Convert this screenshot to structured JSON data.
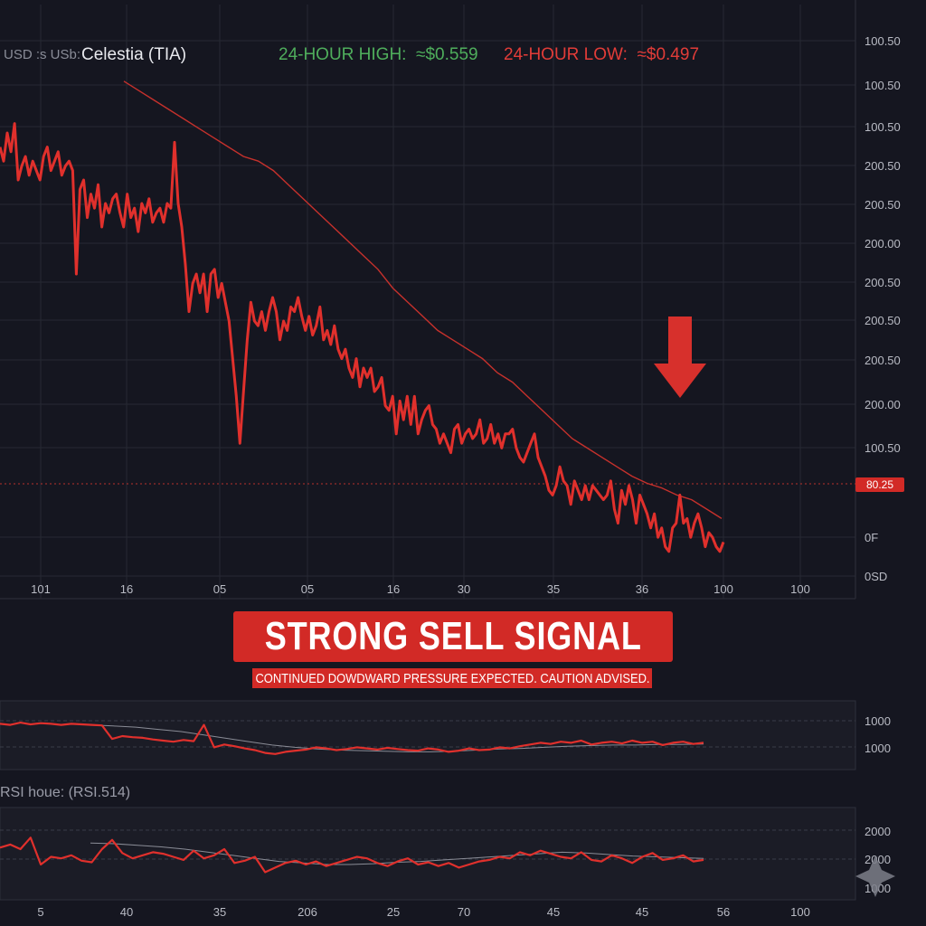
{
  "header": {
    "pair_label": "USD :s USb:",
    "asset_label": "Celestia (TIA)",
    "high_label": "24-HOUR HIGH:",
    "high_value": "≈$0.559",
    "low_label": "24-HOUR LOW:",
    "low_value": "≈$0.497"
  },
  "colors": {
    "price": "#e0302c",
    "ma": "#c6312c",
    "high": "#4fae5c",
    "low": "#e23c38",
    "banner": "#d22a26",
    "grid": "#262833",
    "background": "#151620"
  },
  "signal": {
    "title": "STRONG SELL SIGNAL",
    "subtitle": "CONTINUED DOWDWARD PRESSURE EXPECTED. CAUTION ADVISED."
  },
  "arrow_icon": "down-arrow-icon",
  "corner_icon": "diamond-star-icon",
  "chart_data": [
    {
      "type": "line",
      "title": "",
      "y_tick_labels": [
        "100.50",
        "100.50",
        "100.50",
        "200.50",
        "200.50",
        "200.00",
        "200.50",
        "200.50",
        "200.50",
        "200.00",
        "100.50",
        "0F",
        "0SD"
      ],
      "x_tick_labels": [
        "101",
        "16",
        "05",
        "05",
        "16",
        "30",
        "35",
        "36",
        "100",
        "100"
      ],
      "current_price_label": "80.25",
      "ylim": [
        0,
        100
      ],
      "grid": true,
      "series": [
        {
          "values": [
            87,
            84,
            90,
            86,
            92,
            80,
            83,
            85,
            81,
            84,
            82,
            80,
            85,
            87,
            82,
            84,
            86,
            81,
            83,
            84,
            82,
            60,
            78,
            80,
            72,
            77,
            74,
            79,
            70,
            75,
            73,
            76,
            77,
            73,
            70,
            77,
            72,
            74,
            69,
            75,
            73,
            76,
            71,
            73,
            74,
            71,
            75,
            74,
            88,
            75,
            70,
            62,
            52,
            58,
            60,
            56,
            60,
            52,
            60,
            61,
            55,
            58,
            54,
            50,
            42,
            34,
            24,
            35,
            46,
            54,
            50,
            49,
            52,
            48,
            52,
            55,
            52,
            46,
            50,
            48,
            53,
            52,
            55,
            51,
            48,
            51,
            47,
            49,
            53,
            46,
            48,
            45,
            49,
            44,
            42,
            44,
            40,
            38,
            42,
            36,
            40,
            38,
            40,
            35,
            36,
            38,
            32,
            31,
            34,
            26,
            33,
            29,
            34,
            28,
            34,
            26,
            29,
            31,
            32,
            28,
            27,
            24,
            26,
            24,
            22,
            27,
            28,
            24,
            26,
            27,
            25,
            26,
            29,
            24,
            25,
            28,
            24,
            26,
            23,
            26,
            26,
            27,
            23,
            21,
            20,
            22,
            24,
            26,
            21,
            19,
            17,
            14,
            13,
            15,
            19,
            16,
            15,
            11,
            16,
            14,
            12,
            15,
            12,
            15,
            14,
            13,
            12,
            13,
            16,
            10,
            7,
            14,
            11,
            15,
            12,
            7,
            13,
            11,
            9,
            6,
            9,
            4,
            6,
            2,
            1,
            6,
            7,
            13,
            7,
            8,
            4,
            7,
            9,
            6,
            2,
            5,
            4,
            2,
            1,
            3
          ]
        },
        {
          "name": "",
          "values": [
            101,
            99,
            97,
            95,
            93,
            91,
            89,
            87,
            85,
            84,
            82,
            79,
            76,
            73,
            70,
            67,
            64,
            61,
            57,
            54,
            51,
            48,
            46,
            44,
            42,
            39,
            37,
            34,
            31,
            28,
            25,
            23,
            21,
            19,
            17,
            15.5,
            14.5,
            13,
            12,
            10,
            8
          ]
        }
      ]
    },
    {
      "type": "line",
      "title": "",
      "y_tick_labels": [
        "1000",
        "1000"
      ],
      "grid": true,
      "series": [
        {
          "values": [
            72,
            70,
            74,
            71,
            73,
            72,
            70,
            72,
            71,
            70,
            69,
            45,
            50,
            48,
            47,
            44,
            42,
            40,
            43,
            41,
            70,
            30,
            35,
            32,
            28,
            25,
            20,
            18,
            22,
            24,
            26,
            30,
            28,
            25,
            27,
            30,
            28,
            26,
            29,
            27,
            25,
            24,
            28,
            26,
            22,
            24,
            28,
            25,
            26,
            30,
            28,
            32,
            35,
            38,
            36,
            40,
            38,
            42,
            35,
            38,
            40,
            37,
            42,
            38,
            40,
            34,
            38,
            40,
            36,
            38
          ]
        },
        {
          "name": "",
          "values": [
            70,
            68,
            66,
            62,
            58,
            52,
            46,
            40,
            34,
            30,
            27,
            25,
            24,
            23,
            22,
            22,
            23,
            25,
            27,
            28,
            30,
            32,
            33,
            34,
            34,
            35,
            35,
            36
          ]
        }
      ]
    },
    {
      "type": "line",
      "title": "RSI houe: (RSI.514)",
      "y_tick_labels": [
        "2000",
        "2000",
        "1000"
      ],
      "x_tick_labels": [
        "5",
        "40",
        "35",
        "206",
        "25",
        "70",
        "45",
        "45",
        "56",
        "100"
      ],
      "grid": true,
      "series": [
        {
          "values": [
            62,
            66,
            60,
            75,
            40,
            50,
            48,
            52,
            45,
            43,
            60,
            72,
            55,
            48,
            52,
            56,
            54,
            50,
            46,
            58,
            48,
            52,
            60,
            42,
            45,
            50,
            30,
            36,
            42,
            45,
            40,
            44,
            38,
            42,
            46,
            50,
            48,
            42,
            38,
            44,
            48,
            40,
            43,
            38,
            42,
            36,
            40,
            44,
            46,
            50,
            48,
            56,
            52,
            58,
            54,
            50,
            48,
            56,
            46,
            44,
            52,
            48,
            42,
            50,
            55,
            46,
            48,
            52,
            44,
            46
          ]
        },
        {
          "name": "",
          "values": [
            68,
            67,
            65,
            63,
            60,
            56,
            52,
            48,
            44,
            42,
            40,
            40,
            41,
            43,
            44,
            46,
            48,
            50,
            52,
            54,
            56,
            55,
            53,
            51,
            50,
            49,
            48
          ]
        }
      ]
    }
  ]
}
